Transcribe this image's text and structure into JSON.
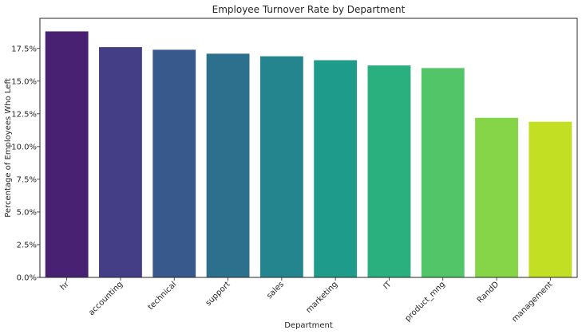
{
  "chart_data": {
    "type": "bar",
    "title": "Employee Turnover Rate by Department",
    "xlabel": "Department",
    "ylabel": "Percentage of Employees Who Left",
    "categories": [
      "hr",
      "accounting",
      "technical",
      "support",
      "sales",
      "marketing",
      "IT",
      "product_mng",
      "RandD",
      "management"
    ],
    "values": [
      18.8,
      17.6,
      17.4,
      17.1,
      16.9,
      16.6,
      16.2,
      16.0,
      12.2,
      11.9
    ],
    "value_unit": "%",
    "ylim": [
      0,
      19.8
    ],
    "yticks": [
      0,
      2.5,
      5,
      7.5,
      10,
      12.5,
      15,
      17.5
    ],
    "ytick_labels": [
      "0.0%",
      "2.5%",
      "5.0%",
      "7.5%",
      "10.0%",
      "12.5%",
      "15.0%",
      "17.5%"
    ],
    "grid": false,
    "colors": [
      "#482173",
      "#433e85",
      "#38598c",
      "#2d708e",
      "#25858e",
      "#1e9b8a",
      "#2ab07f",
      "#52c569",
      "#86d549",
      "#c2df23"
    ]
  }
}
